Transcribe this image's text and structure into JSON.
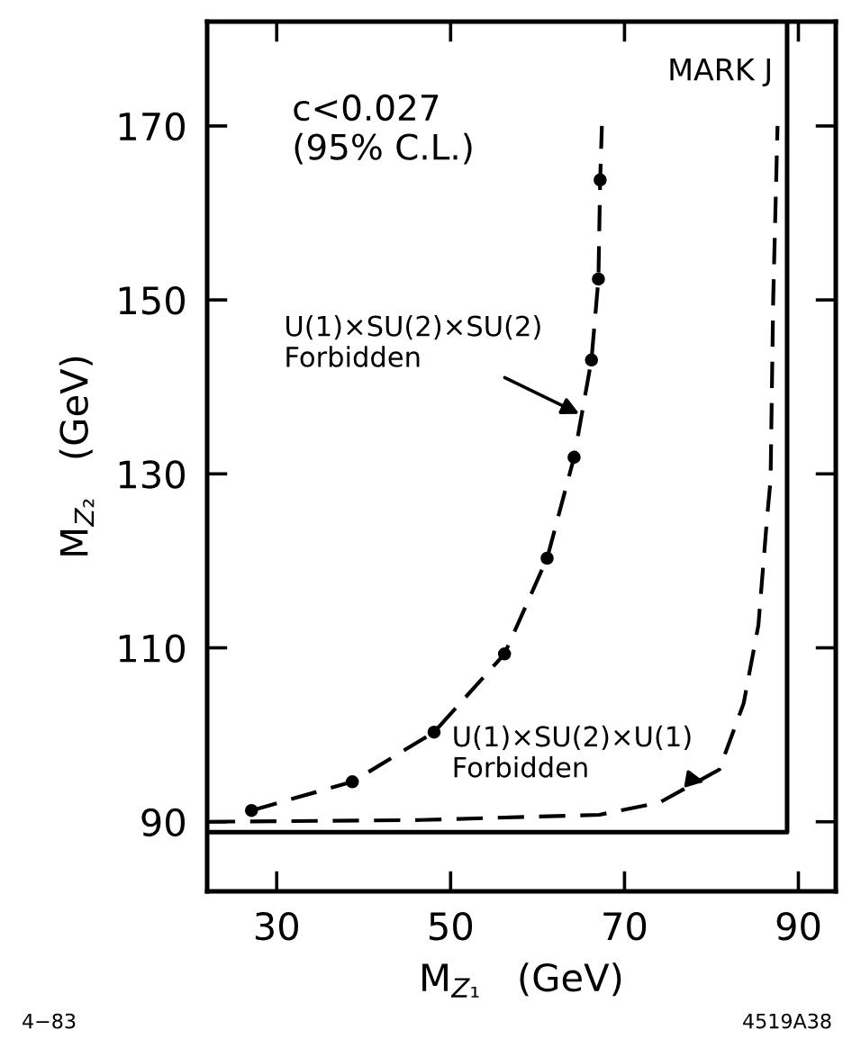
{
  "chart_data": {
    "type": "line",
    "xlabel": "M$_{Z₁}$   (GeV)",
    "ylabel": "M$_{Z₂}$   (GeV)",
    "xlim": [
      22,
      94.3
    ],
    "ylim": [
      82,
      182
    ],
    "xticks": [
      30,
      50,
      70,
      90
    ],
    "yticks": [
      90,
      110,
      130,
      150,
      170
    ],
    "grid": false,
    "series": [
      {
        "type": "line",
        "line_style": "dashed",
        "color": "#000000",
        "x": [
          27.1,
          38.7,
          48.1,
          56.2,
          61.1,
          64.2,
          66.2,
          67.0,
          67.2,
          67.4
        ],
        "values": [
          91.3,
          94.6,
          100.3,
          109.3,
          120.3,
          131.9,
          143.1,
          152.4,
          163.8,
          170
        ]
      },
      {
        "type": "scatter",
        "marker": "circle",
        "color": "#000000",
        "x": [
          27.1,
          38.7,
          48.1,
          56.2,
          61.1,
          64.2,
          66.2,
          67.0,
          67.2
        ],
        "values": [
          91.3,
          94.6,
          100.3,
          109.3,
          120.3,
          131.9,
          143.1,
          152.4,
          163.8
        ]
      },
      {
        "type": "line",
        "line_style": "dashed",
        "color": "#000000",
        "x": [
          22.2,
          46.5,
          67.1,
          74.0,
          80.9,
          83.7,
          85.4,
          86.4,
          86.8,
          87.1,
          87.6
        ],
        "values": [
          90,
          90.2,
          90.8,
          92.2,
          96.0,
          103.6,
          112.6,
          125.0,
          129.3,
          150,
          170
        ]
      },
      {
        "type": "line",
        "line_style": "solid",
        "color": "#000000",
        "x": [
          22,
          88.7,
          88.7
        ],
        "values": [
          88.8,
          88.8,
          182
        ]
      }
    ],
    "annotations": [
      "c<0.027\n(95% C.L.)",
      "MARK J",
      {
        "text": "U(1)×SU(2)×SU(2)\nForbidden",
        "x": 64.8,
        "y": 136.9
      },
      {
        "text": "U(1)×SU(2)×U(1)\nForbidden",
        "x": 79.2,
        "y": 94.6
      },
      "4−83",
      "4519A38"
    ]
  }
}
